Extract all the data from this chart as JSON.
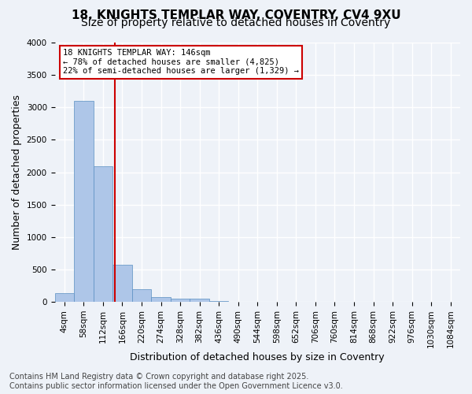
{
  "title_line1": "18, KNIGHTS TEMPLAR WAY, COVENTRY, CV4 9XU",
  "title_line2": "Size of property relative to detached houses in Coventry",
  "xlabel": "Distribution of detached houses by size in Coventry",
  "ylabel": "Number of detached properties",
  "bar_color": "#aec6e8",
  "bar_edge_color": "#5a8fc2",
  "bin_labels": [
    "4sqm",
    "58sqm",
    "112sqm",
    "166sqm",
    "220sqm",
    "274sqm",
    "328sqm",
    "382sqm",
    "436sqm",
    "490sqm",
    "544sqm",
    "598sqm",
    "652sqm",
    "706sqm",
    "760sqm",
    "814sqm",
    "868sqm",
    "922sqm",
    "976sqm",
    "1030sqm",
    "1084sqm"
  ],
  "values": [
    140,
    3100,
    2090,
    575,
    200,
    75,
    55,
    45,
    10,
    0,
    0,
    0,
    0,
    0,
    0,
    0,
    0,
    0,
    0,
    0,
    0
  ],
  "ylim": [
    0,
    4000
  ],
  "yticks": [
    0,
    500,
    1000,
    1500,
    2000,
    2500,
    3000,
    3500,
    4000
  ],
  "property_sqm": 146,
  "bin_start_sqm": [
    4,
    58,
    112,
    166,
    220,
    274,
    328,
    382,
    436,
    490,
    544,
    598,
    652,
    706,
    760,
    814,
    868,
    922,
    976,
    1030,
    1084
  ],
  "annotation_text": "18 KNIGHTS TEMPLAR WAY: 146sqm\n← 78% of detached houses are smaller (4,825)\n22% of semi-detached houses are larger (1,329) →",
  "annotation_box_color": "#ffffff",
  "annotation_box_edge": "#cc0000",
  "vline_color": "#cc0000",
  "footer_line1": "Contains HM Land Registry data © Crown copyright and database right 2025.",
  "footer_line2": "Contains public sector information licensed under the Open Government Licence v3.0.",
  "background_color": "#eef2f8",
  "grid_color": "#ffffff",
  "title_fontsize": 11,
  "subtitle_fontsize": 10,
  "axis_label_fontsize": 9,
  "tick_fontsize": 7.5,
  "annotation_fontsize": 7.5,
  "footer_fontsize": 7
}
